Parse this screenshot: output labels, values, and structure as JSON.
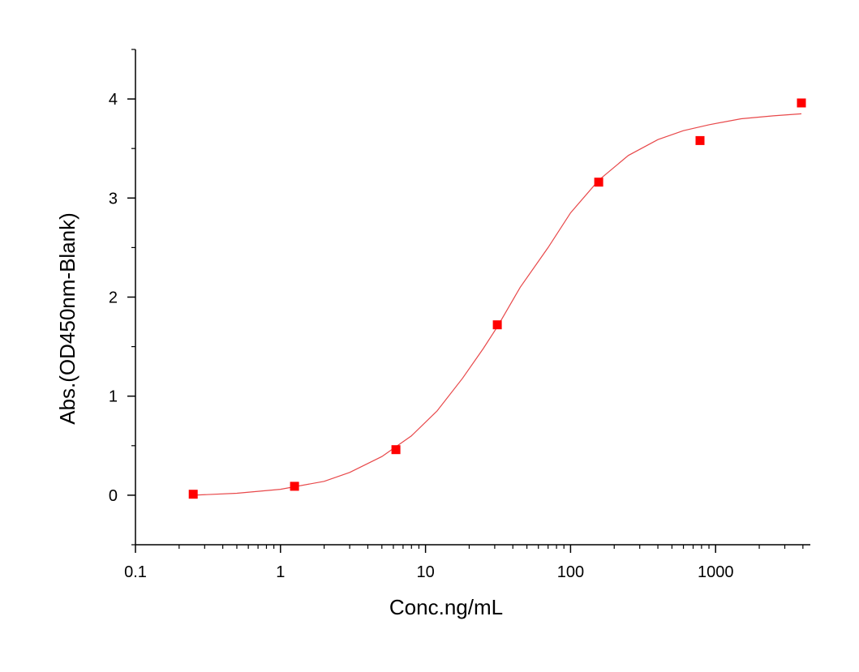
{
  "chart_data": {
    "type": "scatter",
    "title": "",
    "xlabel": "Conc.ng/mL",
    "ylabel": "Abs.(OD450nm-Blank)",
    "x_scale": "log",
    "xlim": [
      0.1,
      4500
    ],
    "ylim": [
      -0.5,
      4.5
    ],
    "grid": false,
    "x_ticks": [
      0.1,
      1,
      10,
      100,
      1000
    ],
    "x_tick_labels": [
      "0.1",
      "1",
      "10",
      "100",
      "1000"
    ],
    "y_ticks": [
      0,
      1,
      2,
      3,
      4
    ],
    "y_tick_labels": [
      "0",
      "1",
      "2",
      "3",
      "4"
    ],
    "series": [
      {
        "kind": "markers",
        "marker": "square",
        "color": "#ff0000",
        "x": [
          0.25,
          1.25,
          6.25,
          31.25,
          156.25,
          781.25,
          3906.25
        ],
        "y": [
          0.01,
          0.09,
          0.46,
          1.72,
          3.16,
          3.58,
          3.96
        ]
      },
      {
        "kind": "fit-line",
        "color": "#e8484a",
        "x": [
          0.25,
          0.5,
          1,
          2,
          3,
          5,
          8,
          12,
          18,
          25,
          31.25,
          45,
          70,
          100,
          156.25,
          250,
          400,
          600,
          900,
          1500,
          2500,
          3906.25
        ],
        "y": [
          0.0,
          0.02,
          0.06,
          0.14,
          0.23,
          0.39,
          0.6,
          0.85,
          1.18,
          1.48,
          1.7,
          2.1,
          2.5,
          2.85,
          3.18,
          3.43,
          3.59,
          3.68,
          3.74,
          3.8,
          3.83,
          3.85
        ]
      }
    ]
  }
}
